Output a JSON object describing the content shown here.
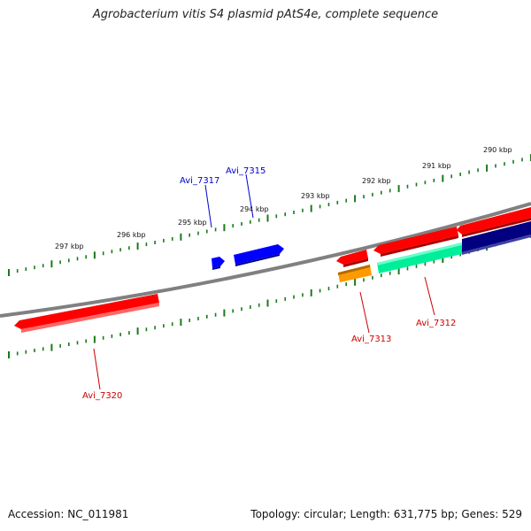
{
  "title": "Agrobacterium vitis S4 plasmid pAtS4e, complete sequence",
  "accession": "Accession: NC_011981",
  "summary": "Topology: circular; Length: 631,775 bp; Genes: 529",
  "colors": {
    "backbone": "#808080",
    "ticks": "#1a7a1a",
    "forward_label": "#0000cc",
    "reverse_label": "#cc0000"
  },
  "ruler_labels": [
    {
      "name": "290-kbp",
      "text": "290 kbp"
    },
    {
      "name": "291-kbp",
      "text": "291 kbp"
    },
    {
      "name": "292-kbp",
      "text": "292 kbp"
    },
    {
      "name": "293-kbp",
      "text": "293 kbp"
    },
    {
      "name": "294-kbp",
      "text": "294 kbp"
    },
    {
      "name": "295-kbp",
      "text": "295 kbp"
    },
    {
      "name": "296-kbp",
      "text": "296 kbp"
    },
    {
      "name": "297-kbp",
      "text": "297 kbp"
    }
  ],
  "genes": [
    {
      "name": "Avi_7315",
      "label": "Avi_7315",
      "strand": "forward",
      "color": "#0000ff"
    },
    {
      "name": "Avi_7317",
      "label": "Avi_7317",
      "strand": "forward",
      "color": "#0000ff"
    },
    {
      "name": "Avi_7312",
      "label": "Avi_7312",
      "strand": "reverse",
      "color": "#ff0000"
    },
    {
      "name": "Avi_7313",
      "label": "Avi_7313",
      "strand": "reverse",
      "color": "#ff9900"
    },
    {
      "name": "Avi_7320",
      "label": "Avi_7320",
      "strand": "reverse",
      "color": "#ff0000"
    }
  ]
}
